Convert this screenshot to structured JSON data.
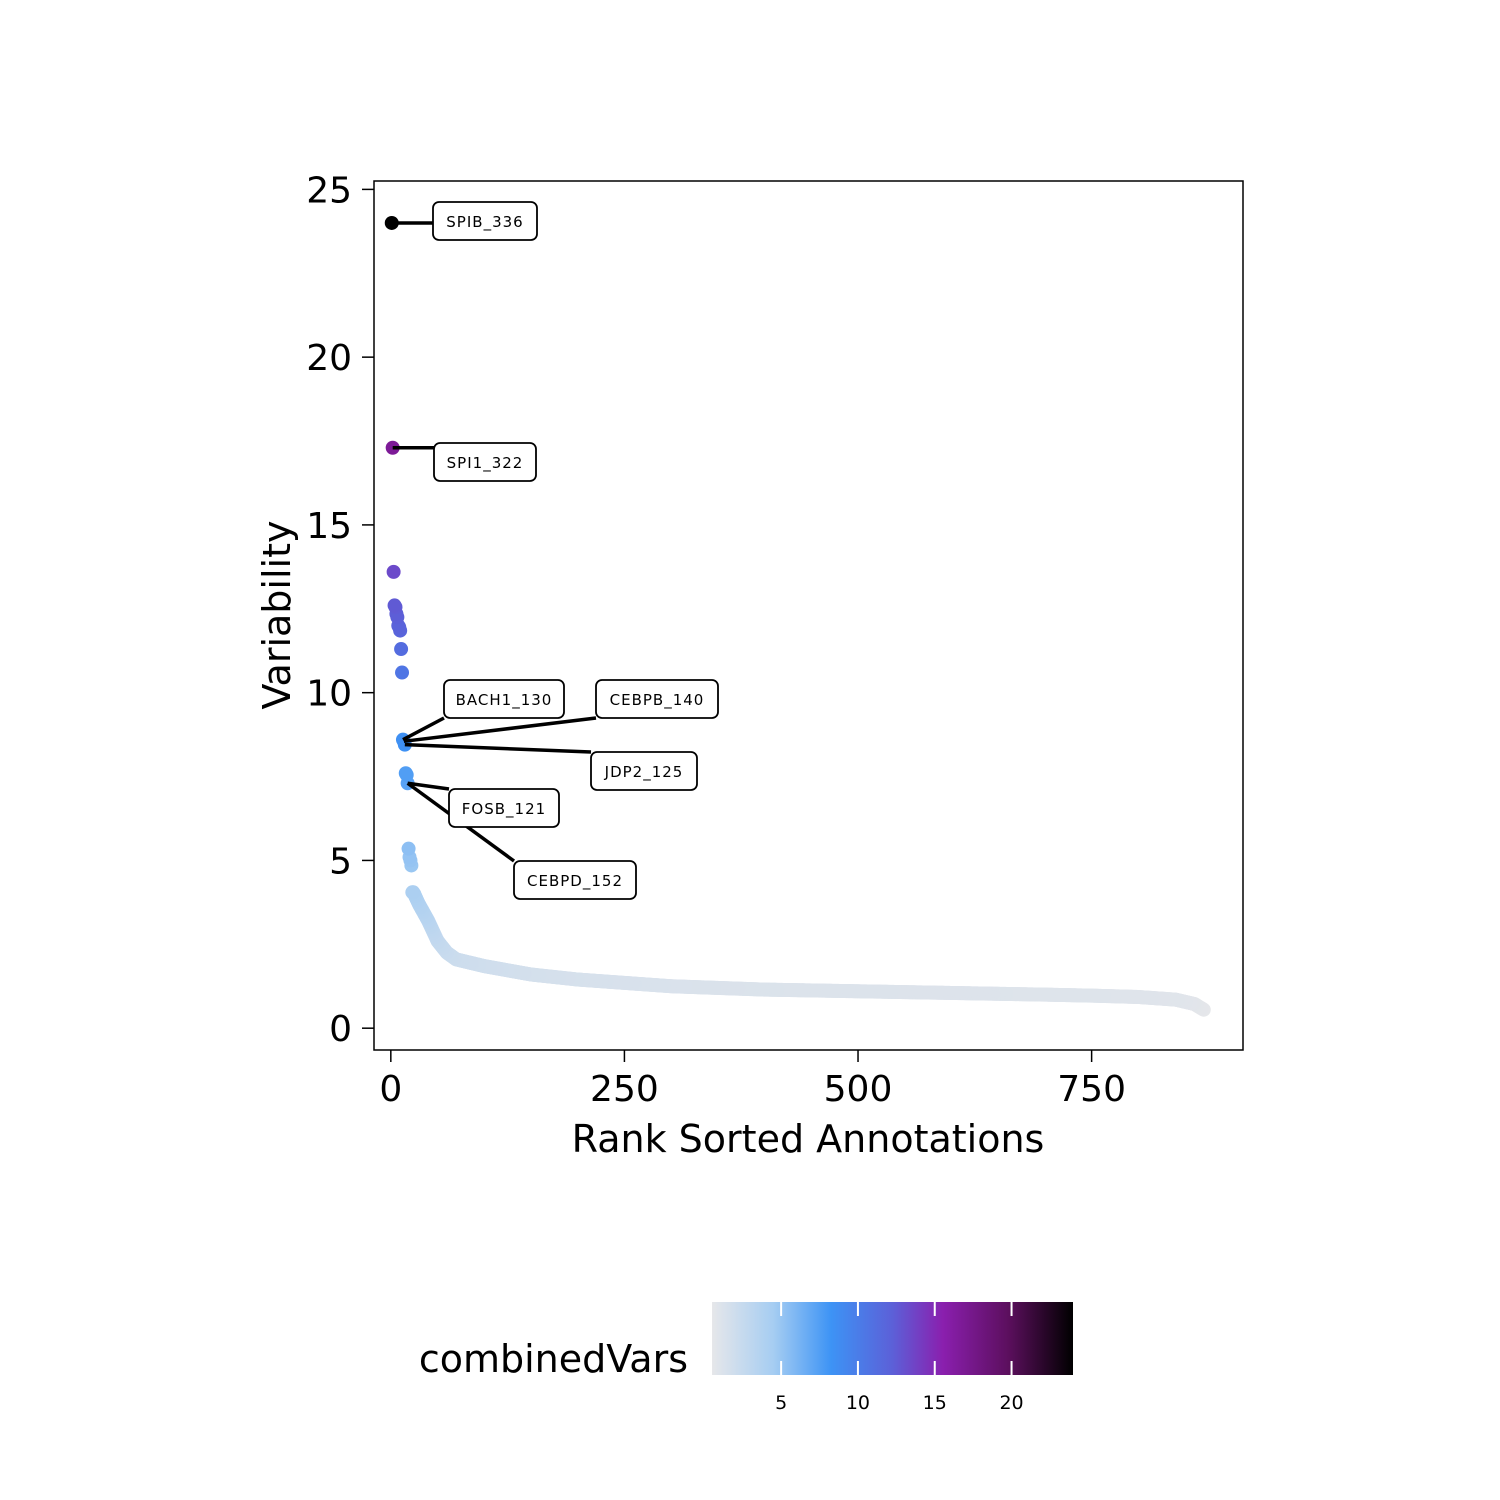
{
  "chart_data": {
    "type": "scatter",
    "title": "",
    "xlabel": "Rank Sorted Annotations",
    "ylabel": "Variability",
    "xlim": [
      -18,
      912
    ],
    "ylim": [
      -0.65,
      25.25
    ],
    "xticks": [
      0,
      250,
      500,
      750
    ],
    "yticks": [
      0,
      5,
      10,
      15,
      20,
      25
    ],
    "grid": false,
    "point_count": 870,
    "points": [
      {
        "rank": 1,
        "value": 24.0
      },
      {
        "rank": 2,
        "value": 17.3
      },
      {
        "rank": 3,
        "value": 13.6
      },
      {
        "rank": 4,
        "value": 12.6
      },
      {
        "rank": 5,
        "value": 12.55
      },
      {
        "rank": 6,
        "value": 12.35
      },
      {
        "rank": 7,
        "value": 12.25
      },
      {
        "rank": 8,
        "value": 12.0
      },
      {
        "rank": 9,
        "value": 11.95
      },
      {
        "rank": 10,
        "value": 11.85
      },
      {
        "rank": 11,
        "value": 11.3
      },
      {
        "rank": 12,
        "value": 10.6
      },
      {
        "rank": 13,
        "value": 8.6
      },
      {
        "rank": 14,
        "value": 8.55
      },
      {
        "rank": 15,
        "value": 8.45
      },
      {
        "rank": 16,
        "value": 7.6
      },
      {
        "rank": 17,
        "value": 7.55
      },
      {
        "rank": 18,
        "value": 7.3
      },
      {
        "rank": 19,
        "value": 5.35
      },
      {
        "rank": 20,
        "value": 5.1
      },
      {
        "rank": 21,
        "value": 5.0
      },
      {
        "rank": 22,
        "value": 4.85
      },
      {
        "rank": 23,
        "value": 4.05
      },
      {
        "rank": 24,
        "value": 4.05
      },
      {
        "rank": 25,
        "value": 4.0
      }
    ],
    "tail_curve": [
      {
        "rank": 25,
        "value": 4.0
      },
      {
        "rank": 30,
        "value": 3.7
      },
      {
        "rank": 40,
        "value": 3.2
      },
      {
        "rank": 50,
        "value": 2.6
      },
      {
        "rank": 60,
        "value": 2.25
      },
      {
        "rank": 70,
        "value": 2.05
      },
      {
        "rank": 100,
        "value": 1.85
      },
      {
        "rank": 150,
        "value": 1.6
      },
      {
        "rank": 200,
        "value": 1.45
      },
      {
        "rank": 250,
        "value": 1.35
      },
      {
        "rank": 300,
        "value": 1.25
      },
      {
        "rank": 400,
        "value": 1.15
      },
      {
        "rank": 500,
        "value": 1.1
      },
      {
        "rank": 600,
        "value": 1.05
      },
      {
        "rank": 700,
        "value": 1.0
      },
      {
        "rank": 750,
        "value": 0.97
      },
      {
        "rank": 800,
        "value": 0.93
      },
      {
        "rank": 840,
        "value": 0.85
      },
      {
        "rank": 860,
        "value": 0.72
      },
      {
        "rank": 870,
        "value": 0.55
      }
    ],
    "annotations": [
      {
        "label": "SPIB_336",
        "rank": 1,
        "value": 24.0
      },
      {
        "label": "SPI1_322",
        "rank": 2,
        "value": 17.3
      },
      {
        "label": "BACH1_130",
        "rank": 13,
        "value": 8.6
      },
      {
        "label": "CEBPB_140",
        "rank": 14,
        "value": 8.55
      },
      {
        "label": "JDP2_125",
        "rank": 15,
        "value": 8.45
      },
      {
        "label": "FOSB_121",
        "rank": 18,
        "value": 7.3
      },
      {
        "label": "CEBPD_152",
        "rank": 18,
        "value": 7.3
      }
    ],
    "legend": {
      "title": "combinedVars",
      "position": "bottom",
      "ticks": [
        5,
        10,
        15,
        20
      ],
      "range": [
        0.5,
        24.0
      ],
      "colors": [
        "#e6e7ea",
        "#a6cdf2",
        "#3d93f5",
        "#5c60d8",
        "#8a1fae",
        "#5c0f5e",
        "#000000"
      ]
    }
  }
}
